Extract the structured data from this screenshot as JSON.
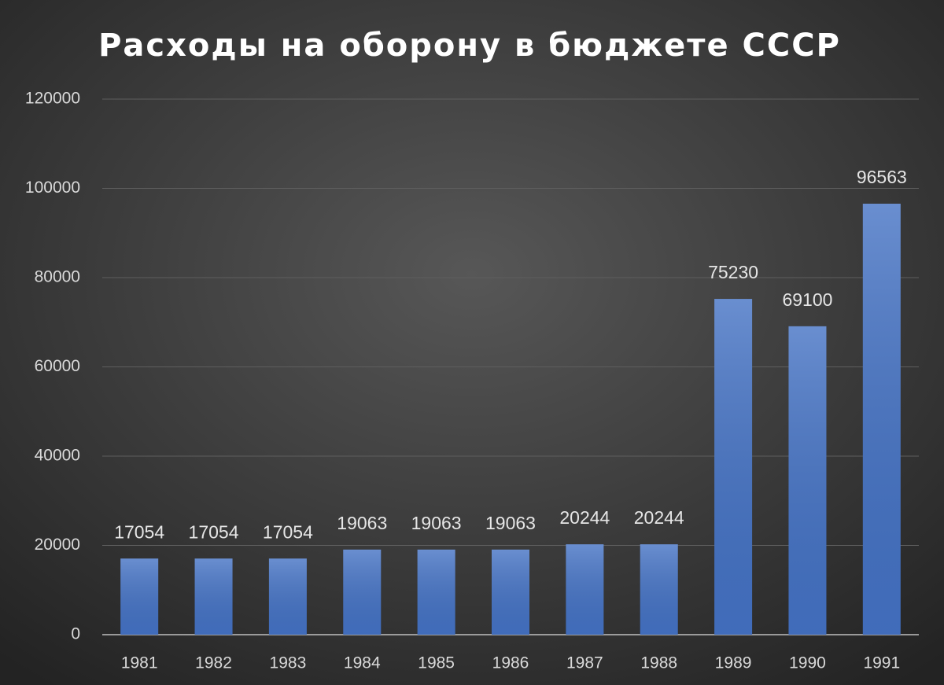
{
  "chart_data": {
    "type": "bar",
    "title": "Расходы на оборону в бюджете СССР",
    "categories": [
      "1981",
      "1982",
      "1983",
      "1984",
      "1985",
      "1986",
      "1987",
      "1988",
      "1989",
      "1990",
      "1991"
    ],
    "values": [
      17054,
      17054,
      17054,
      19063,
      19063,
      19063,
      20244,
      20244,
      75230,
      69100,
      96563
    ],
    "color": "#4472c4",
    "ylim": [
      0,
      120000
    ],
    "yticks": [
      0,
      20000,
      40000,
      60000,
      80000,
      100000,
      120000
    ],
    "grid": true
  }
}
